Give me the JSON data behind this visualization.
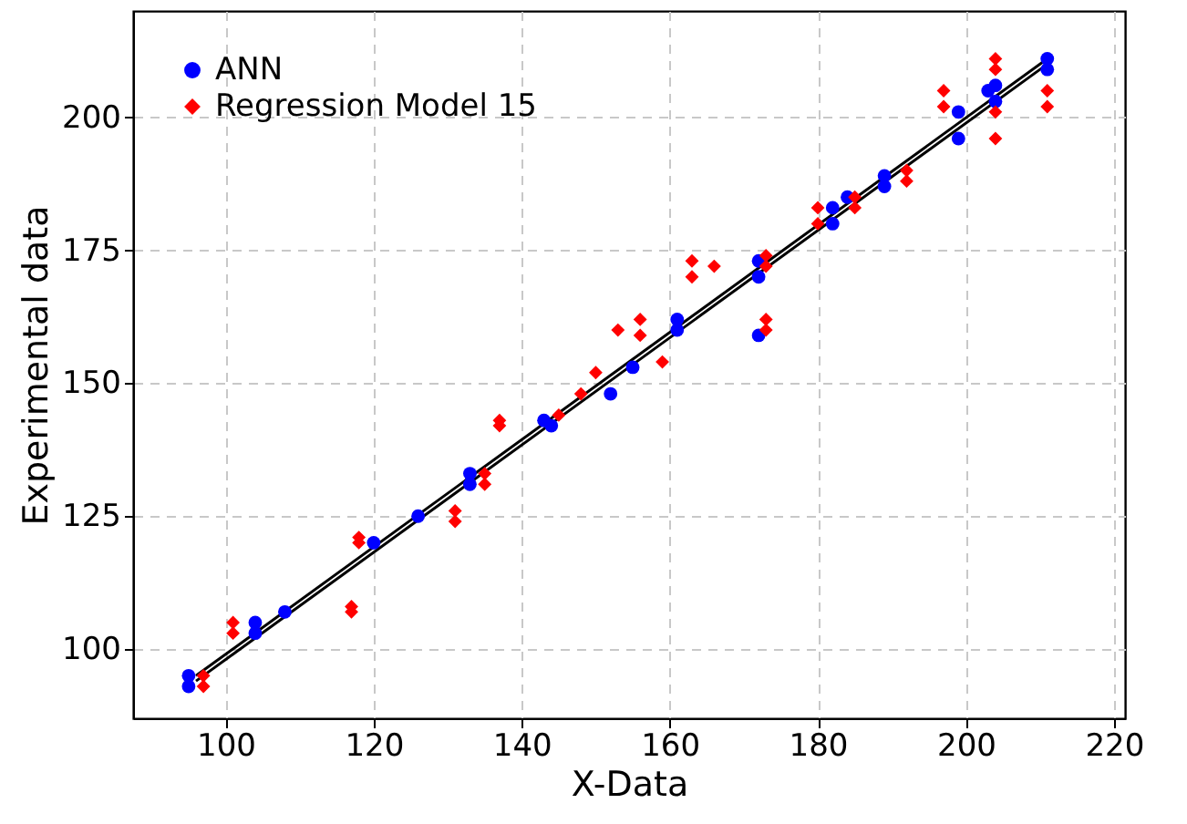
{
  "chart_data": {
    "type": "scatter",
    "xlabel": "X-Data",
    "ylabel": "Experimental data",
    "xlim": [
      87.5,
      221.5
    ],
    "ylim": [
      87,
      220
    ],
    "xticks": [
      100,
      120,
      140,
      160,
      180,
      200,
      220
    ],
    "yticks": [
      100,
      125,
      150,
      175,
      200
    ],
    "grid": true,
    "legend": "top left",
    "series": [
      {
        "name": "ANN",
        "color": "#0000ff",
        "marker": "circle",
        "x": [
          95,
          95,
          104,
          104,
          108,
          120,
          126,
          133,
          133,
          143,
          144,
          152,
          155,
          161,
          161,
          172,
          172,
          172,
          182,
          182,
          184,
          189,
          189,
          199,
          199,
          203,
          204,
          204,
          211,
          211
        ],
        "values": [
          95,
          93,
          105,
          103,
          107,
          120,
          125,
          133,
          131,
          143,
          142,
          148,
          153,
          162,
          160,
          173,
          170,
          159,
          183,
          180,
          185,
          189,
          187,
          196,
          201,
          205,
          206,
          203,
          211,
          209
        ]
      },
      {
        "name": "Regression Model 15",
        "color": "#ff0000",
        "marker": "diamond",
        "x": [
          97,
          97,
          101,
          101,
          118,
          118,
          117,
          117,
          131,
          131,
          135,
          135,
          137,
          137,
          145,
          148,
          150,
          153,
          156,
          156,
          159,
          163,
          163,
          166,
          173,
          173,
          173,
          173,
          180,
          180,
          185,
          185,
          192,
          192,
          197,
          197,
          204,
          204,
          204,
          204,
          211,
          211
        ],
        "values": [
          95,
          93,
          105,
          103,
          121,
          120,
          108,
          107,
          126,
          124,
          133,
          131,
          143,
          142,
          144,
          148,
          152,
          160,
          162,
          159,
          154,
          173,
          170,
          172,
          174,
          172,
          162,
          160,
          183,
          180,
          185,
          183,
          190,
          188,
          205,
          202,
          211,
          209,
          201,
          196,
          205,
          202
        ]
      },
      {
        "type": "line",
        "color": "#000000",
        "marker": "none",
        "line_style": "solid",
        "x": [
          96,
          211
        ],
        "values": [
          95,
          211
        ]
      },
      {
        "type": "line",
        "color": "#000000",
        "marker": "none",
        "line_style": "solid",
        "x": [
          96,
          211
        ],
        "values": [
          94,
          210
        ]
      }
    ]
  }
}
